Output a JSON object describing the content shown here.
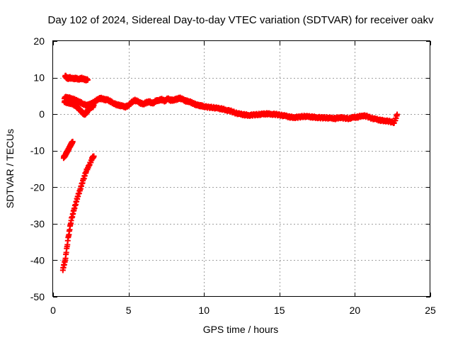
{
  "chart_data": {
    "type": "scatter",
    "title": "Day 102 of 2024, Sidereal Day-to-day VTEC variation (SDTVAR) for receiver oakv",
    "xlabel": "GPS time / hours",
    "ylabel": "SDTVAR / TECUs",
    "xlim": [
      0,
      25
    ],
    "ylim": [
      -50,
      20
    ],
    "xticks": [
      0,
      5,
      10,
      15,
      20,
      25
    ],
    "yticks": [
      -50,
      -40,
      -30,
      -20,
      -10,
      0,
      10,
      20
    ],
    "grid": true,
    "legend": "none",
    "series": [
      {
        "name": "SDTVAR",
        "color": "#ff0000",
        "marker": "plus",
        "segments": [
          {
            "x": [
              0.8,
              0.9,
              1.0,
              1.1,
              1.3,
              1.5,
              1.7,
              1.9,
              2.1,
              2.3
            ],
            "y": [
              10.5,
              10.0,
              9.8,
              10.0,
              9.7,
              9.8,
              9.6,
              9.8,
              9.5,
              9.3
            ]
          },
          {
            "x": [
              0.7,
              0.8,
              0.9,
              1.0,
              1.1,
              1.2,
              1.3
            ],
            "y": [
              -11.8,
              -11.3,
              -10.5,
              -9.8,
              -9.0,
              -8.2,
              -7.5
            ]
          },
          {
            "x": [
              0.65,
              0.8,
              1.0,
              1.2,
              1.4,
              1.6,
              1.8,
              2.0,
              2.2,
              2.4,
              2.6,
              2.7
            ],
            "y": [
              -42.5,
              -40,
              -34,
              -29,
              -26,
              -23,
              -20.5,
              -18,
              -15.5,
              -14,
              -12,
              -11.5
            ]
          },
          {
            "x": [
              0.75,
              0.9,
              1.1,
              1.3,
              1.5,
              1.7,
              1.9,
              2.0,
              2.1,
              2.2,
              2.3,
              2.5,
              2.7
            ],
            "y": [
              3.5,
              3.2,
              3.0,
              2.8,
              2.2,
              1.5,
              0.6,
              0.2,
              0.0,
              0.3,
              1.0,
              1.8,
              2.2
            ]
          },
          {
            "x": [
              0.75,
              1.0,
              1.2,
              1.4,
              1.6,
              1.8,
              2.0,
              2.2,
              2.4,
              2.6,
              2.8,
              3.0,
              3.2,
              3.4,
              3.6,
              3.8,
              4.0,
              4.2,
              4.4,
              4.6,
              4.8,
              5.0,
              5.2,
              5.4,
              5.6,
              5.8,
              6.0,
              6.2,
              6.4,
              6.6,
              6.8,
              7.0,
              7.2,
              7.4,
              7.6,
              7.8,
              8.0,
              8.2,
              8.4,
              8.6,
              8.8,
              9.0,
              9.2,
              9.4,
              9.6,
              9.8,
              10.0,
              10.3,
              10.6,
              10.9,
              11.2,
              11.5,
              11.8,
              12.1,
              12.4,
              12.7,
              13.0,
              13.3,
              13.6,
              13.9,
              14.2,
              14.5,
              14.8,
              15.1,
              15.4,
              15.7,
              16.0,
              16.3,
              16.6,
              16.9,
              17.2,
              17.5,
              17.8,
              18.1,
              18.4,
              18.7,
              19.0,
              19.3,
              19.6,
              19.9,
              20.2,
              20.5,
              20.8,
              21.1,
              21.4,
              21.7,
              22.0,
              22.3,
              22.6,
              22.8
            ],
            "y": [
              4.5,
              4.6,
              4.2,
              4.0,
              3.6,
              3.2,
              2.8,
              2.4,
              2.6,
              3.0,
              3.5,
              4.2,
              4.3,
              4.0,
              3.9,
              3.5,
              3.0,
              2.6,
              2.4,
              2.2,
              2.0,
              2.4,
              3.2,
              3.8,
              3.5,
              3.0,
              2.8,
              3.2,
              3.4,
              2.9,
              3.6,
              3.8,
              4.0,
              3.6,
              4.2,
              3.8,
              3.9,
              4.1,
              4.4,
              4.0,
              3.6,
              3.5,
              3.1,
              2.7,
              2.4,
              2.3,
              2.1,
              1.9,
              1.8,
              1.6,
              1.4,
              1.1,
              0.8,
              0.3,
              0.0,
              -0.2,
              -0.3,
              -0.2,
              -0.1,
              0.0,
              0.1,
              0.0,
              -0.1,
              -0.3,
              -0.5,
              -0.8,
              -0.9,
              -0.8,
              -0.6,
              -0.7,
              -0.8,
              -0.9,
              -1.0,
              -1.0,
              -1.1,
              -1.2,
              -0.9,
              -1.1,
              -1.2,
              -0.9,
              -0.8,
              -0.4,
              -0.6,
              -1.1,
              -1.4,
              -1.7,
              -1.8,
              -2.0,
              -2.3,
              -0.2
            ]
          }
        ]
      }
    ]
  }
}
